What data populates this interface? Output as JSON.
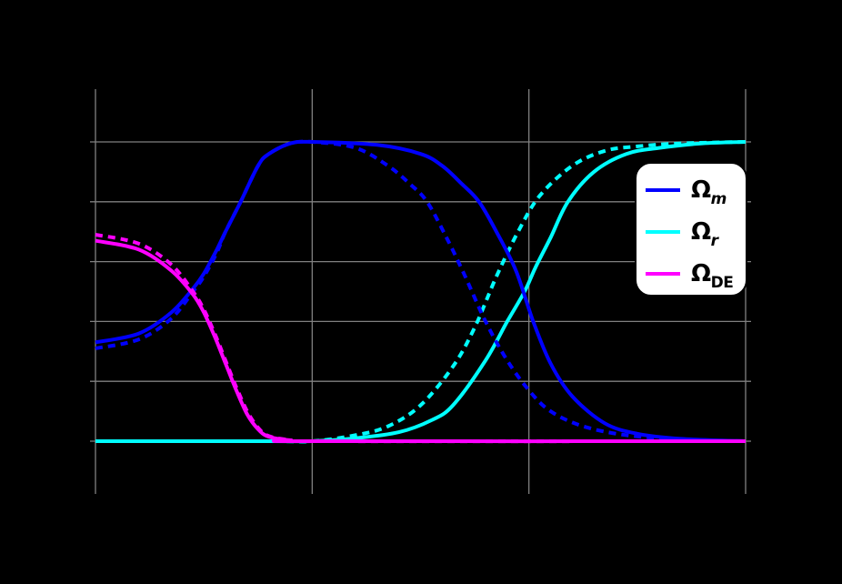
{
  "chart_data": {
    "type": "line",
    "title": "",
    "xlabel": "",
    "ylabel": "",
    "xlim": [
      0,
      3
    ],
    "ylim": [
      -0.15,
      1.2
    ],
    "x_gridlines": [
      0,
      1,
      2,
      3
    ],
    "y_gridlines": [
      0.0,
      0.2,
      0.4,
      0.6,
      0.8,
      1.0
    ],
    "grid": true,
    "tick_labels_visible": false,
    "legend_position": "upper right",
    "legend": [
      {
        "label": "Ω_m",
        "color": "#0000ff"
      },
      {
        "label": "Ω_r",
        "color": "#00ffff"
      },
      {
        "label": "Ω_DE",
        "color": "#ff00ff"
      }
    ],
    "series": [
      {
        "name": "Ω_m (solid)",
        "color": "#0000ff",
        "style": "solid",
        "x": [
          0.0,
          0.2,
          0.35,
          0.45,
          0.5,
          0.56,
          0.6,
          0.67,
          0.75,
          0.8,
          0.9,
          1.0,
          1.3,
          1.5,
          1.6,
          1.69,
          1.77,
          1.85,
          1.94,
          2.02,
          2.1,
          2.2,
          2.35,
          2.5,
          2.7,
          3.0
        ],
        "y": [
          0.33,
          0.36,
          0.43,
          0.51,
          0.56,
          0.64,
          0.7,
          0.8,
          0.92,
          0.96,
          0.995,
          1.0,
          0.99,
          0.96,
          0.92,
          0.86,
          0.8,
          0.7,
          0.57,
          0.4,
          0.26,
          0.15,
          0.06,
          0.025,
          0.008,
          0.0
        ]
      },
      {
        "name": "Ω_m (dashed)",
        "color": "#0000ff",
        "style": "dashed",
        "x": [
          0.0,
          0.2,
          0.35,
          0.45,
          0.5,
          0.56,
          0.6,
          0.67,
          0.75,
          0.8,
          0.9,
          1.0,
          1.2,
          1.35,
          1.45,
          1.53,
          1.62,
          1.7,
          1.8,
          1.9,
          2.0,
          2.1,
          2.25,
          2.45,
          2.7,
          3.0
        ],
        "y": [
          0.31,
          0.34,
          0.41,
          0.5,
          0.55,
          0.63,
          0.7,
          0.8,
          0.92,
          0.96,
          0.995,
          1.0,
          0.98,
          0.92,
          0.86,
          0.8,
          0.68,
          0.56,
          0.4,
          0.27,
          0.17,
          0.1,
          0.05,
          0.02,
          0.006,
          0.0
        ]
      },
      {
        "name": "Ω_r (solid)",
        "color": "#00ffff",
        "style": "solid",
        "x": [
          0.0,
          0.8,
          1.0,
          1.2,
          1.4,
          1.55,
          1.65,
          1.8,
          1.9,
          1.98,
          2.03,
          2.1,
          2.18,
          2.3,
          2.45,
          2.6,
          2.8,
          3.0
        ],
        "y": [
          0.0,
          0.0,
          0.0,
          0.01,
          0.03,
          0.07,
          0.12,
          0.27,
          0.4,
          0.5,
          0.58,
          0.68,
          0.8,
          0.9,
          0.96,
          0.98,
          0.995,
          1.0
        ]
      },
      {
        "name": "Ω_r (dashed)",
        "color": "#00ffff",
        "style": "dashed",
        "x": [
          0.0,
          0.8,
          1.0,
          1.2,
          1.35,
          1.5,
          1.65,
          1.75,
          1.85,
          1.95,
          2.05,
          2.2,
          2.35,
          2.5,
          2.7,
          3.0
        ],
        "y": [
          0.0,
          0.0,
          0.0,
          0.02,
          0.05,
          0.12,
          0.25,
          0.38,
          0.55,
          0.7,
          0.82,
          0.92,
          0.97,
          0.985,
          0.995,
          1.0
        ]
      },
      {
        "name": "Ω_DE (solid)",
        "color": "#ff00ff",
        "style": "solid",
        "x": [
          0.0,
          0.2,
          0.35,
          0.45,
          0.5,
          0.55,
          0.6,
          0.65,
          0.7,
          0.75,
          0.8,
          0.9,
          1.0,
          3.0
        ],
        "y": [
          0.67,
          0.64,
          0.57,
          0.49,
          0.43,
          0.35,
          0.26,
          0.17,
          0.09,
          0.04,
          0.015,
          0.003,
          0.0,
          0.0
        ]
      },
      {
        "name": "Ω_DE (dashed)",
        "color": "#ff00ff",
        "style": "dashed",
        "x": [
          0.0,
          0.2,
          0.35,
          0.45,
          0.5,
          0.55,
          0.6,
          0.65,
          0.7,
          0.75,
          0.8,
          0.9,
          1.0,
          3.0
        ],
        "y": [
          0.69,
          0.66,
          0.59,
          0.5,
          0.44,
          0.36,
          0.27,
          0.18,
          0.1,
          0.045,
          0.017,
          0.004,
          0.0,
          0.0
        ]
      }
    ]
  },
  "legend": {
    "items": [
      {
        "symbol": "Ω",
        "sub": "m",
        "color": "#0000ff"
      },
      {
        "symbol": "Ω",
        "sub": "r",
        "color": "#00ffff"
      },
      {
        "symbol": "Ω",
        "sub": "DE",
        "color": "#ff00ff"
      }
    ]
  },
  "colors": {
    "background": "#000000",
    "grid": "#808080",
    "legend_bg": "#ffffff"
  }
}
